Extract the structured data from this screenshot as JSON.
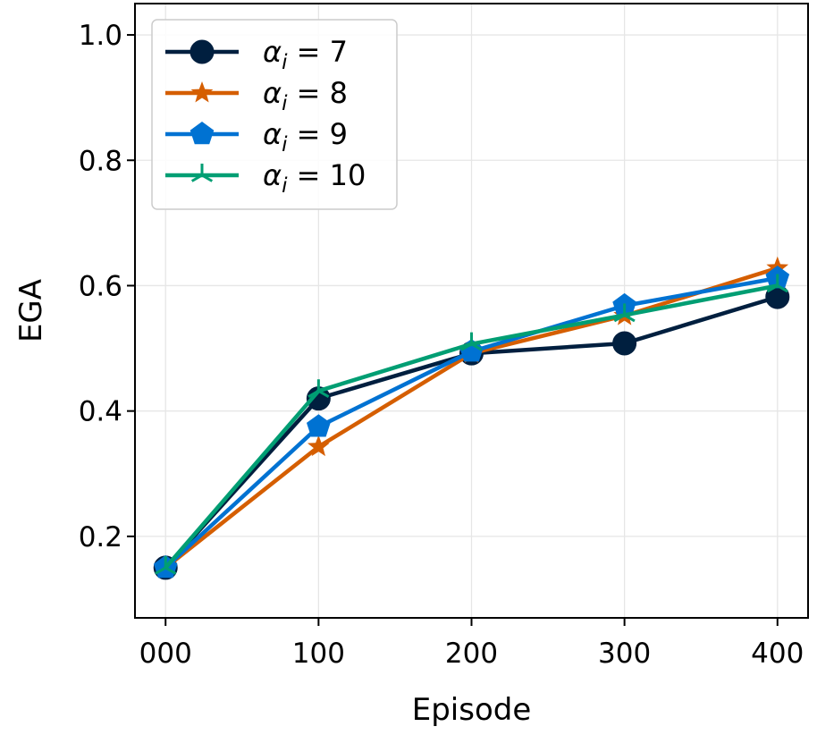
{
  "chart_data": {
    "type": "line",
    "xlabel": "Episode",
    "ylabel": "EGA",
    "x": [
      0,
      100,
      200,
      300,
      400
    ],
    "x_tick_labels": [
      "000",
      "100",
      "200",
      "300",
      "400"
    ],
    "xlim": [
      -20,
      420
    ],
    "ylim": [
      0.07,
      1.05
    ],
    "y_ticks": [
      0.2,
      0.4,
      0.6,
      0.8,
      1.0
    ],
    "y_tick_labels": [
      "0.2",
      "0.4",
      "0.6",
      "0.8",
      "1.0"
    ],
    "grid": true,
    "legend_position": "top-left",
    "series": [
      {
        "name": "α_i = 7",
        "symbol": "α",
        "subscript": "i",
        "eq": "= 7",
        "color": "#001f3f",
        "marker": "circle",
        "values": [
          0.15,
          0.42,
          0.492,
          0.508,
          0.582
        ]
      },
      {
        "name": "α_i = 8",
        "symbol": "α",
        "subscript": "i",
        "eq": "= 8",
        "color": "#d55e00",
        "marker": "star",
        "values": [
          0.15,
          0.343,
          0.492,
          0.552,
          0.628
        ]
      },
      {
        "name": "α_i = 9",
        "symbol": "α",
        "subscript": "i",
        "eq": "= 9",
        "color": "#0072d2",
        "marker": "pentagon",
        "values": [
          0.15,
          0.375,
          0.495,
          0.568,
          0.612
        ]
      },
      {
        "name": "α_i = 10",
        "symbol": "α",
        "subscript": "i",
        "eq": "= 10",
        "color": "#009e73",
        "marker": "tri",
        "values": [
          0.15,
          0.432,
          0.507,
          0.553,
          0.6
        ]
      }
    ]
  }
}
